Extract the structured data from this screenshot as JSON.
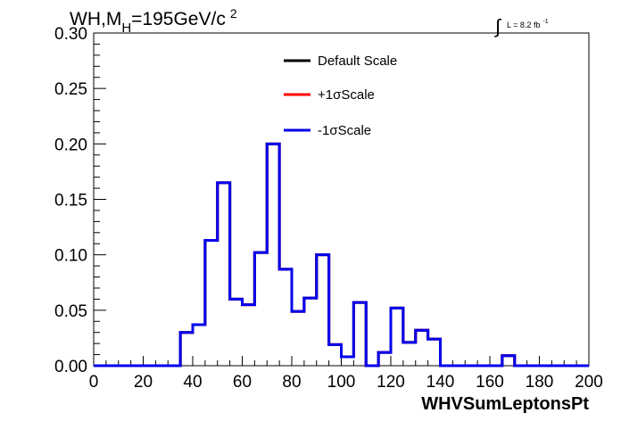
{
  "title": {
    "prefix": "WH,M",
    "subscript": "H",
    "main": "=195GeV/c",
    "superscript": "2"
  },
  "lumi": {
    "integral": "∫",
    "text": "L = 8.2 fb",
    "superscript": "-1"
  },
  "chart_data": {
    "type": "step",
    "xlabel": "WHVSumLeptonsPt",
    "ylabel": "",
    "xlim": [
      0,
      200
    ],
    "ylim": [
      0,
      0.3
    ],
    "x_ticks": [
      0,
      20,
      40,
      60,
      80,
      100,
      120,
      140,
      160,
      180,
      200
    ],
    "x_tick_labels": [
      "0",
      "20",
      "40",
      "60",
      "80",
      "100",
      "120",
      "140",
      "160",
      "180",
      "200"
    ],
    "y_ticks": [
      0,
      0.05,
      0.1,
      0.15,
      0.2,
      0.25,
      0.3
    ],
    "y_tick_labels": [
      "0.00",
      "0.05",
      "0.10",
      "0.15",
      "0.20",
      "0.25",
      "0.30"
    ],
    "bin_edges": [
      0,
      5,
      10,
      15,
      20,
      25,
      30,
      35,
      40,
      45,
      50,
      55,
      60,
      65,
      70,
      75,
      80,
      85,
      90,
      95,
      100,
      105,
      110,
      115,
      120,
      125,
      130,
      135,
      140,
      145,
      150,
      155,
      160,
      165,
      170,
      175,
      180,
      185,
      190,
      195,
      200
    ],
    "series": [
      {
        "name": "Default Scale",
        "color": "#000000",
        "values": [
          0,
          0,
          0,
          0,
          0,
          0,
          0,
          0.03,
          0.037,
          0.113,
          0.165,
          0.06,
          0.055,
          0.102,
          0.2,
          0.087,
          0.049,
          0.061,
          0.1,
          0.019,
          0.008,
          0.057,
          0,
          0.012,
          0.052,
          0.021,
          0.032,
          0.024,
          0,
          0,
          0,
          0,
          0,
          0.009,
          0,
          0,
          0,
          0,
          0,
          0,
          0
        ]
      },
      {
        "name": "+1σScale",
        "color": "#ff0000",
        "values": [
          0,
          0,
          0,
          0,
          0,
          0,
          0,
          0.03,
          0.037,
          0.113,
          0.165,
          0.06,
          0.055,
          0.102,
          0.2,
          0.087,
          0.049,
          0.061,
          0.1,
          0.019,
          0.008,
          0.057,
          0,
          0.012,
          0.052,
          0.021,
          0.032,
          0.024,
          0,
          0,
          0,
          0,
          0,
          0.009,
          0,
          0,
          0,
          0,
          0,
          0,
          0
        ]
      },
      {
        "name": "-1σScale",
        "color": "#0000ee",
        "values": [
          0,
          0,
          0,
          0,
          0,
          0,
          0,
          0.03,
          0.037,
          0.113,
          0.165,
          0.06,
          0.055,
          0.102,
          0.2,
          0.087,
          0.049,
          0.061,
          0.1,
          0.019,
          0.008,
          0.057,
          0,
          0.012,
          0.052,
          0.021,
          0.032,
          0.024,
          0,
          0,
          0,
          0,
          0,
          0.009,
          0,
          0,
          0,
          0,
          0,
          0,
          0
        ]
      }
    ],
    "legend_position": "top-center",
    "grid": false
  }
}
